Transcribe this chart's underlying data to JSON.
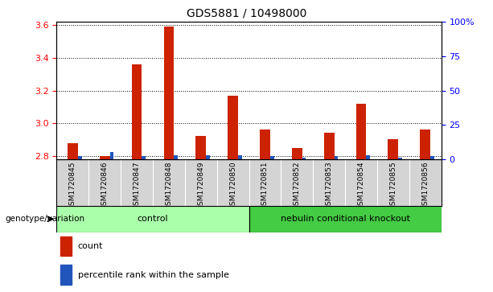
{
  "title": "GDS5881 / 10498000",
  "samples": [
    "GSM1720845",
    "GSM1720846",
    "GSM1720847",
    "GSM1720848",
    "GSM1720849",
    "GSM1720850",
    "GSM1720851",
    "GSM1720852",
    "GSM1720853",
    "GSM1720854",
    "GSM1720855",
    "GSM1720856"
  ],
  "count_values": [
    2.88,
    2.8,
    3.36,
    3.59,
    2.92,
    3.17,
    2.96,
    2.85,
    2.94,
    3.12,
    2.9,
    2.96
  ],
  "percentile_values": [
    2,
    5,
    2,
    3,
    3,
    3,
    2,
    1,
    2,
    3,
    1,
    2
  ],
  "ylim_left": [
    2.78,
    3.62
  ],
  "ylim_right": [
    0,
    100
  ],
  "yticks_left": [
    2.8,
    3.0,
    3.2,
    3.4,
    3.6
  ],
  "yticks_right": [
    0,
    25,
    50,
    75,
    100
  ],
  "bar_color_red": "#cc2200",
  "bar_color_blue": "#2255bb",
  "group_ctrl_color": "#aaffaa",
  "group_neb_color": "#44cc44",
  "group_ctrl_label": "control",
  "group_neb_label": "nebulin conditional knockout",
  "genotype_label": "genotype/variation",
  "legend_count": "count",
  "legend_pct": "percentile rank within the sample",
  "xtick_bg": "#d4d4d4",
  "plot_bg": "#ffffff"
}
